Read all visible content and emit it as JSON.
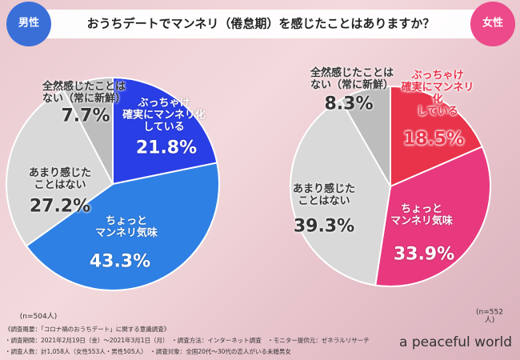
{
  "title": "おうちデートでマンネリ（倦怠期）を感じたことはありますか？",
  "chart_data": [
    {
      "type": "pie",
      "label": "男性",
      "sample": "(n=504人)",
      "categories": [
        "ぶっちゃけ\n確実にマンネリ化\nしている",
        "ちょっと\nマンネリ気味",
        "あまり感じた\nことはない",
        "全然感じたことは\nない（常に新鮮）"
      ],
      "values": [
        21.8,
        43.3,
        27.2,
        7.7
      ],
      "value_labels": [
        "21.8%",
        "43.3%",
        "27.2%",
        "7.7%"
      ],
      "colors": [
        "#2a3ee6",
        "#2f80e4",
        "#d9d9d9",
        "#bdbdbd"
      ]
    },
    {
      "type": "pie",
      "label": "女性",
      "sample": "(n=552人)",
      "categories": [
        "ぶっちゃけ\n確実にマンネリ化\nしている",
        "ちょっと\nマンネリ気味",
        "あまり感じた\nことはない",
        "全然感じたことは\nない（常に新鮮）"
      ],
      "values": [
        18.5,
        33.9,
        39.3,
        8.3
      ],
      "value_labels": [
        "18.5%",
        "33.9%",
        "39.3%",
        "8.3%"
      ],
      "colors": [
        "#e8334a",
        "#e8397f",
        "#d9d9d9",
        "#bdbdbd"
      ]
    }
  ],
  "notes": [
    "《調査概要：「コロナ禍のおうちデート」に関する意識調査》",
    "・調査期間：2021年2月19日（金）〜2021年3月1日（月）　・調査方法：インターネット調査　・モニター提供元：ゼネラルリサーチ",
    "・調査人数：計1,058人（女性553人・男性505人）　・調査対象：全国20代〜30代の恋人がいる未婚男女"
  ],
  "brand": "a peaceful world"
}
